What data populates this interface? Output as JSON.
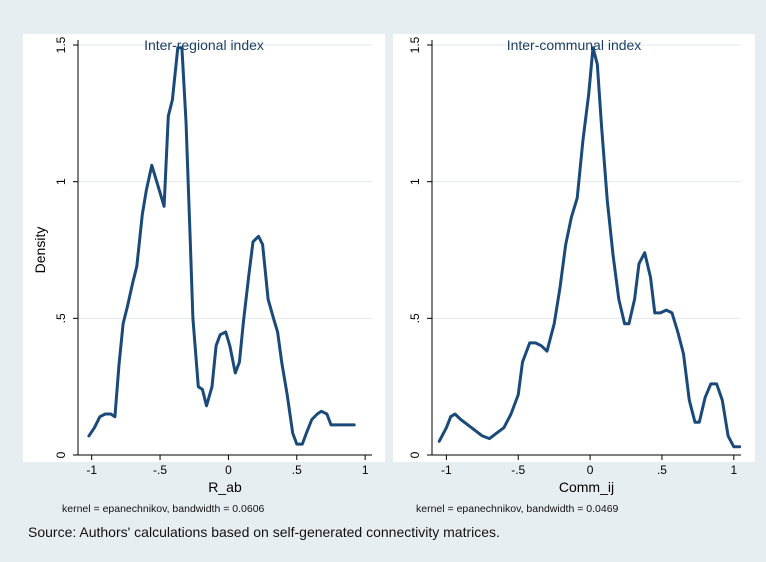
{
  "chart_data": [
    {
      "type": "line",
      "title": "Inter-regional index",
      "xlabel": "R_ab",
      "ylabel": "Density",
      "note": "kernel = epanechnikov, bandwidth = 0.0606",
      "xlim": [
        -1.1,
        1.05
      ],
      "ylim": [
        0,
        1.5
      ],
      "xticks": [
        -1,
        -0.5,
        0,
        0.5,
        1
      ],
      "xtick_labels": [
        "-1",
        "-.5",
        "0",
        ".5",
        "1"
      ],
      "yticks": [
        0,
        0.5,
        1,
        1.5
      ],
      "ytick_labels": [
        "0",
        ".5",
        "1",
        "1.5"
      ],
      "grid": true,
      "line_color": "#1a4a7a",
      "series": [
        {
          "x": [
            -1.02,
            -0.98,
            -0.94,
            -0.9,
            -0.86,
            -0.83,
            -0.8,
            -0.77,
            -0.74,
            -0.7,
            -0.67,
            -0.63,
            -0.6,
            -0.56,
            -0.53,
            -0.5,
            -0.47,
            -0.44,
            -0.41,
            -0.37,
            -0.34,
            -0.31,
            -0.28,
            -0.26,
            -0.22,
            -0.19,
            -0.16,
            -0.12,
            -0.09,
            -0.06,
            -0.02,
            0.01,
            0.05,
            0.08,
            0.11,
            0.15,
            0.18,
            0.22,
            0.25,
            0.29,
            0.33,
            0.36,
            0.39,
            0.43,
            0.47,
            0.5,
            0.54,
            0.57,
            0.61,
            0.65,
            0.68,
            0.72,
            0.75,
            0.79,
            0.82,
            0.86,
            0.89,
            0.92
          ],
          "y": [
            0.07,
            0.1,
            0.14,
            0.15,
            0.15,
            0.14,
            0.33,
            0.48,
            0.54,
            0.63,
            0.69,
            0.88,
            0.97,
            1.06,
            1.01,
            0.96,
            0.91,
            1.24,
            1.3,
            1.49,
            1.49,
            1.22,
            0.8,
            0.5,
            0.25,
            0.24,
            0.18,
            0.25,
            0.4,
            0.44,
            0.45,
            0.4,
            0.3,
            0.34,
            0.49,
            0.66,
            0.78,
            0.8,
            0.77,
            0.57,
            0.5,
            0.45,
            0.34,
            0.22,
            0.08,
            0.04,
            0.04,
            0.08,
            0.13,
            0.15,
            0.16,
            0.15,
            0.11,
            0.11,
            0.11,
            0.11,
            0.11,
            0.11
          ]
        }
      ]
    },
    {
      "type": "line",
      "title": "Inter-communal index",
      "xlabel": "Comm_ij",
      "ylabel": "",
      "note": "kernel = epanechnikov, bandwidth = 0.0469",
      "xlim": [
        -1.1,
        1.05
      ],
      "ylim": [
        0,
        1.5
      ],
      "xticks": [
        -1,
        -0.5,
        0,
        0.5,
        1
      ],
      "xtick_labels": [
        "-1",
        "-.5",
        "0",
        ".5",
        "1"
      ],
      "yticks": [
        0,
        0.5,
        1,
        1.5
      ],
      "ytick_labels": [
        "0",
        ".5",
        "1",
        "1.5"
      ],
      "grid": true,
      "line_color": "#1a4a7a",
      "series": [
        {
          "x": [
            -1.05,
            -1.0,
            -0.97,
            -0.94,
            -0.9,
            -0.85,
            -0.8,
            -0.75,
            -0.7,
            -0.65,
            -0.6,
            -0.55,
            -0.5,
            -0.47,
            -0.42,
            -0.38,
            -0.34,
            -0.3,
            -0.25,
            -0.21,
            -0.17,
            -0.13,
            -0.09,
            -0.05,
            -0.01,
            0.02,
            0.05,
            0.08,
            0.12,
            0.16,
            0.2,
            0.24,
            0.27,
            0.31,
            0.34,
            0.38,
            0.42,
            0.45,
            0.49,
            0.53,
            0.57,
            0.61,
            0.65,
            0.69,
            0.73,
            0.76,
            0.8,
            0.84,
            0.88,
            0.92,
            0.96,
            1.0,
            1.04
          ],
          "y": [
            0.05,
            0.1,
            0.14,
            0.15,
            0.13,
            0.11,
            0.09,
            0.07,
            0.06,
            0.08,
            0.1,
            0.15,
            0.22,
            0.34,
            0.41,
            0.41,
            0.4,
            0.38,
            0.48,
            0.61,
            0.77,
            0.87,
            0.94,
            1.15,
            1.32,
            1.49,
            1.43,
            1.2,
            0.93,
            0.73,
            0.57,
            0.48,
            0.48,
            0.57,
            0.7,
            0.74,
            0.65,
            0.52,
            0.52,
            0.53,
            0.52,
            0.45,
            0.37,
            0.2,
            0.12,
            0.12,
            0.21,
            0.26,
            0.26,
            0.2,
            0.07,
            0.03,
            0.03
          ]
        }
      ]
    }
  ],
  "source_note": "Source: Authors' calculations based on self-generated connectivity matrices."
}
